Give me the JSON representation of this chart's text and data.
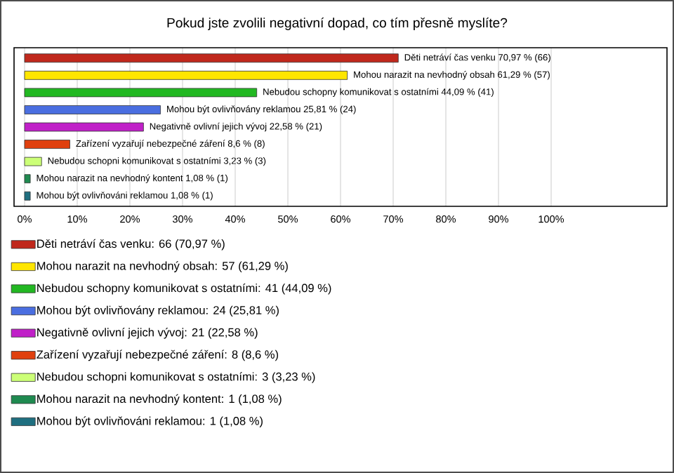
{
  "chart_data": {
    "type": "bar",
    "orientation": "horizontal",
    "title": "Pokud jste zvolili negativní dopad, co tím přesně myslíte?",
    "categories": [
      null,
      null,
      null,
      null,
      null,
      null,
      null,
      null,
      null
    ],
    "series": [
      {
        "name": "Děti netráví čas venku: 66 (70,97 %)",
        "color": "#c0281c",
        "values": [
          70.97,
          null,
          null,
          null,
          null,
          null,
          null,
          null,
          null
        ],
        "value_labels": [
          "Děti netráví čas venku 70,97 % (66)",
          null,
          null,
          null,
          null,
          null,
          null,
          null,
          null
        ]
      },
      {
        "name": "Mohou narazit na nevhodný obsah: 57 (61,29 %)",
        "color": "#ffe600",
        "values": [
          null,
          61.29,
          null,
          null,
          null,
          null,
          null,
          null,
          null
        ],
        "value_labels": [
          null,
          "Mohou narazit na nevhodný obsah 61,29 % (57)",
          null,
          null,
          null,
          null,
          null,
          null,
          null
        ]
      },
      {
        "name": "Nebudou schopny komunikovat s ostatními: 41 (44,09 %)",
        "color": "#22b822",
        "values": [
          null,
          null,
          44.09,
          null,
          null,
          null,
          null,
          null,
          null
        ],
        "value_labels": [
          null,
          null,
          "Nebudou schopny komunikovat s ostatními 44,09 % (41)",
          null,
          null,
          null,
          null,
          null,
          null
        ]
      },
      {
        "name": "Mohou být ovlivňovány reklamou: 24 (25,81 %)",
        "color": "#4a6ee0",
        "values": [
          null,
          null,
          null,
          25.81,
          null,
          null,
          null,
          null,
          null
        ],
        "value_labels": [
          null,
          null,
          null,
          "Mohou být ovlivňovány reklamou 25,81 % (24)",
          null,
          null,
          null,
          null,
          null
        ]
      },
      {
        "name": "Negativně ovlivní jejich vývoj: 21 (22,58 %)",
        "color": "#c020c8",
        "values": [
          null,
          null,
          null,
          null,
          22.58,
          null,
          null,
          null,
          null
        ],
        "value_labels": [
          null,
          null,
          null,
          null,
          "Negativně ovlivní jejich vývoj 22,58 % (21)",
          null,
          null,
          null,
          null
        ]
      },
      {
        "name": "Zařízení vyzařují nebezpečné záření: 8 (8,6 %)",
        "color": "#e0400e",
        "values": [
          null,
          null,
          null,
          null,
          null,
          8.6,
          null,
          null,
          null
        ],
        "value_labels": [
          null,
          null,
          null,
          null,
          null,
          "Zařízení vyzařují nebezpečné záření 8,6 % (8)",
          null,
          null,
          null
        ]
      },
      {
        "name": "Nebudou schopni komunikovat s ostatními: 3 (3,23 %)",
        "color": "#ccff77",
        "values": [
          null,
          null,
          null,
          null,
          null,
          null,
          3.23,
          null,
          null
        ],
        "value_labels": [
          null,
          null,
          null,
          null,
          null,
          null,
          "Nebudou schopni komunikovat s ostatními 3,23 % (3)",
          null,
          null
        ]
      },
      {
        "name": "Mohou narazit na nevhodný kontent: 1 (1,08 %)",
        "color": "#1f8a50",
        "values": [
          null,
          null,
          null,
          null,
          null,
          null,
          null,
          1.08,
          null
        ],
        "value_labels": [
          null,
          null,
          null,
          null,
          null,
          null,
          null,
          "Mohou narazit na nevhodný kontent 1,08 % (1)",
          null
        ]
      },
      {
        "name": "Mohou být ovlivňováni reklamou: 1 (1,08 %)",
        "color": "#1f6f80",
        "values": [
          null,
          null,
          null,
          null,
          null,
          null,
          null,
          null,
          1.08
        ],
        "value_labels": [
          null,
          null,
          null,
          null,
          null,
          null,
          null,
          null,
          "Mohou být ovlivňováni reklamou 1,08 % (1)"
        ]
      }
    ],
    "xlim": [
      -2,
      122
    ],
    "xticks": [
      {
        "value": 0,
        "label": "0%"
      },
      {
        "value": 10,
        "label": "10%"
      },
      {
        "value": 20,
        "label": "20%"
      },
      {
        "value": 30,
        "label": "30%"
      },
      {
        "value": 40,
        "label": "40%"
      },
      {
        "value": 50,
        "label": "50%"
      },
      {
        "value": 60,
        "label": "60%"
      },
      {
        "value": 70,
        "label": "70%"
      },
      {
        "value": 80,
        "label": "80%"
      },
      {
        "value": 90,
        "label": "90%"
      },
      {
        "value": 100,
        "label": "100%"
      }
    ],
    "grid": "x",
    "legend": "bottom"
  }
}
